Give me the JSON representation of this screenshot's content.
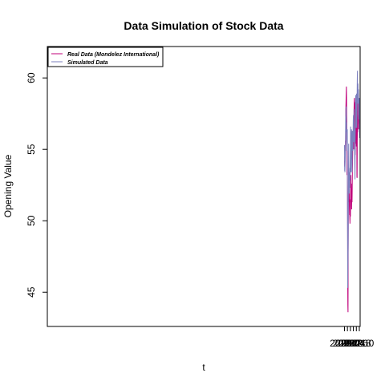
{
  "chart_data": {
    "type": "line",
    "title": "Data Simulation of Stock Data",
    "xlabel": "t",
    "ylabel": "Opening Value",
    "xlim": [
      1999.985,
      2021.055
    ],
    "ylim": [
      42.6,
      62.2
    ],
    "x_ticks": [
      2020.0,
      2020.2,
      2020.4,
      2020.6,
      2020.8,
      2021.0
    ],
    "x_tick_labels": [
      "2020.0",
      "2020.2",
      "2020.4",
      "2020.6",
      "2020.8",
      "2021.0"
    ],
    "y_ticks": [
      45,
      50,
      55,
      60
    ],
    "y_tick_labels": [
      "45",
      "50",
      "55",
      "60"
    ],
    "legend_position": "top-left",
    "series": [
      {
        "name": "Real Data (Mondelez International)",
        "color": "#c0007a",
        "x": [
          2020.0,
          2020.01,
          2020.02,
          2020.03,
          2020.04,
          2020.05,
          2020.06,
          2020.07,
          2020.08,
          2020.09,
          2020.1,
          2020.11,
          2020.12,
          2020.13,
          2020.14,
          2020.15,
          2020.16,
          2020.17,
          2020.18,
          2020.19,
          2020.2,
          2020.21,
          2020.22,
          2020.23,
          2020.24,
          2020.25,
          2020.26,
          2020.27,
          2020.28,
          2020.29,
          2020.3,
          2020.31,
          2020.32,
          2020.33,
          2020.34,
          2020.35,
          2020.36,
          2020.37,
          2020.38,
          2020.39,
          2020.4,
          2020.41,
          2020.42,
          2020.43,
          2020.44,
          2020.45,
          2020.46,
          2020.47,
          2020.48,
          2020.49,
          2020.5,
          2020.51,
          2020.52,
          2020.53,
          2020.54,
          2020.55,
          2020.56,
          2020.57,
          2020.58,
          2020.59,
          2020.6,
          2020.61,
          2020.62,
          2020.63,
          2020.64,
          2020.65,
          2020.66,
          2020.67,
          2020.68,
          2020.69,
          2020.7,
          2020.71,
          2020.72,
          2020.73,
          2020.74,
          2020.75,
          2020.76,
          2020.77,
          2020.78,
          2020.79,
          2020.8,
          2020.81,
          2020.82,
          2020.83,
          2020.84,
          2020.85,
          2020.86,
          2020.87,
          2020.88,
          2020.89,
          2020.9,
          2020.91,
          2020.92,
          2020.93,
          2020.94,
          2020.95,
          2020.96,
          2020.97,
          2020.98,
          2020.99,
          2021.0,
          2021.01,
          2021.02
        ],
        "values": [
          54.2,
          53.8,
          54.5,
          54.0,
          54.8,
          55.2,
          55.6,
          54.9,
          56.4,
          57.8,
          58.1,
          58.6,
          59.0,
          59.4,
          58.2,
          57.4,
          56.9,
          53.2,
          53.6,
          55.1,
          52.3,
          49.1,
          46.0,
          44.1,
          43.6,
          47.5,
          50.8,
          52.6,
          53.4,
          52.8,
          51.9,
          51.3,
          52.2,
          51.0,
          50.4,
          50.9,
          50.2,
          49.8,
          50.6,
          51.5,
          50.3,
          51.8,
          52.4,
          53.2,
          52.1,
          51.3,
          52.0,
          51.2,
          50.8,
          51.5,
          52.6,
          51.3,
          52.1,
          53.4,
          54.0,
          54.8,
          55.3,
          56.2,
          55.4,
          55.8,
          56.6,
          55.9,
          55.0,
          56.4,
          57.5,
          58.1,
          58.4,
          58.6,
          57.6,
          57.9,
          58.3,
          55.5,
          54.6,
          55.1,
          56.2,
          55.4,
          56.5,
          57.1,
          56.9,
          57.4,
          55.2,
          56.5,
          57.3,
          56.8,
          53.1,
          53.0,
          55.6,
          56.4,
          57.3,
          56.2,
          58.3,
          58.7,
          58.0,
          57.5,
          58.9,
          56.4,
          57.9,
          56.8,
          57.8,
          58.2,
          58.5,
          57.9,
          57.4
        ]
      },
      {
        "name": "Simulated Data",
        "color": "#7b7fbe",
        "x": [
          2020.0,
          2020.01,
          2020.02,
          2020.03,
          2020.04,
          2020.05,
          2020.06,
          2020.07,
          2020.08,
          2020.09,
          2020.1,
          2020.11,
          2020.12,
          2020.13,
          2020.14,
          2020.15,
          2020.16,
          2020.17,
          2020.18,
          2020.19,
          2020.2,
          2020.21,
          2020.22,
          2020.23,
          2020.24,
          2020.25,
          2020.26,
          2020.27,
          2020.28,
          2020.29,
          2020.3,
          2020.31,
          2020.32,
          2020.33,
          2020.34,
          2020.35,
          2020.36,
          2020.37,
          2020.38,
          2020.39,
          2020.4,
          2020.41,
          2020.42,
          2020.43,
          2020.44,
          2020.45,
          2020.46,
          2020.47,
          2020.48,
          2020.49,
          2020.5,
          2020.51,
          2020.52,
          2020.53,
          2020.54,
          2020.55,
          2020.56,
          2020.57,
          2020.58,
          2020.59,
          2020.6,
          2020.61,
          2020.62,
          2020.63,
          2020.64,
          2020.65,
          2020.66,
          2020.67,
          2020.68,
          2020.69,
          2020.7,
          2020.71,
          2020.72,
          2020.73,
          2020.74,
          2020.75,
          2020.76,
          2020.77,
          2020.78,
          2020.79,
          2020.8,
          2020.81,
          2020.82,
          2020.83,
          2020.84,
          2020.85,
          2020.86,
          2020.87,
          2020.88,
          2020.89,
          2020.9,
          2020.91,
          2020.92,
          2020.93,
          2020.94,
          2020.95,
          2020.96,
          2020.97,
          2020.98,
          2020.99,
          2021.0,
          2021.01,
          2021.02
        ],
        "values": [
          55.3,
          53.5,
          54.0,
          53.4,
          53.8,
          54.2,
          54.9,
          56.1,
          57.3,
          56.5,
          57.8,
          58.0,
          57.3,
          56.2,
          56.9,
          55.6,
          55.4,
          54.9,
          56.1,
          56.4,
          51.6,
          48.3,
          45.3,
          46.3,
          47.2,
          48.4,
          51.3,
          53.4,
          55.4,
          54.3,
          53.5,
          52.7,
          51.9,
          52.8,
          53.4,
          52.3,
          52.9,
          53.7,
          52.8,
          54.4,
          55.2,
          56.6,
          54.3,
          55.5,
          53.4,
          54.9,
          55.9,
          56.4,
          55.7,
          54.3,
          55.0,
          53.4,
          54.1,
          56.3,
          55.4,
          56.2,
          55.6,
          54.9,
          56.1,
          57.0,
          57.4,
          56.1,
          55.5,
          56.5,
          57.8,
          56.0,
          55.6,
          56.4,
          55.1,
          54.5,
          53.8,
          52.9,
          55.6,
          56.8,
          57.3,
          58.8,
          58.4,
          56.5,
          57.1,
          57.2,
          58.2,
          58.9,
          57.3,
          56.5,
          57.6,
          58.6,
          59.8,
          60.5,
          59.1,
          58.2,
          58.8,
          59.6,
          58.2,
          58.6,
          59.2,
          57.4,
          58.0,
          57.1,
          58.4,
          57.3,
          58.6,
          56.1,
          55.8
        ]
      }
    ]
  }
}
